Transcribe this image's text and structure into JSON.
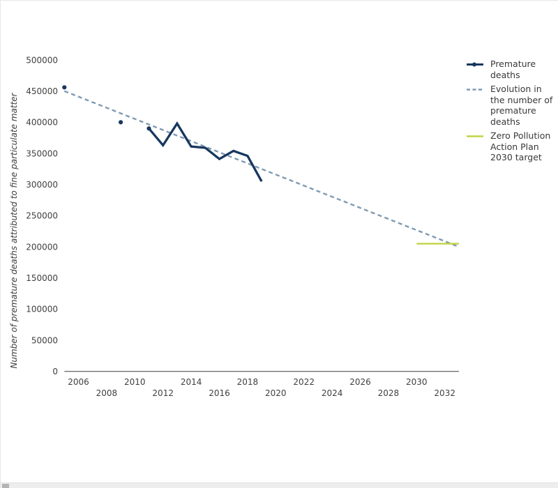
{
  "page": {
    "background": "#ffffff",
    "border_color": "#e7e7e7"
  },
  "legend": {
    "items": [
      {
        "id": "premature-deaths",
        "label": "Premature\ndeaths",
        "color": "#17375e",
        "style": "solid-marker"
      },
      {
        "id": "evolution-trend",
        "label": "Evolution in\nthe number of\npremature\ndeaths",
        "color": "#7f9ab3",
        "style": "dashed"
      },
      {
        "id": "zpap-target",
        "label": "Zero Pollution\nAction Plan\n2030 target",
        "color": "#c1d343",
        "style": "solid"
      }
    ]
  },
  "chart_data": {
    "type": "line",
    "title": "",
    "xlabel": "",
    "ylabel": "Number of premature deaths attributed to fine particulate matter",
    "xlim": [
      2005,
      2033.3
    ],
    "ylim": [
      0,
      500000
    ],
    "x_ticks": [
      2006,
      2008,
      2010,
      2012,
      2014,
      2016,
      2018,
      2020,
      2022,
      2024,
      2026,
      2028,
      2030,
      2032
    ],
    "y_ticks": [
      0,
      50000,
      100000,
      150000,
      200000,
      250000,
      300000,
      350000,
      400000,
      450000,
      500000
    ],
    "grid": false,
    "legend_position": "top-right",
    "series": [
      {
        "id": "premature-deaths",
        "name": "Premature deaths",
        "color": "#17375e",
        "style": "solid",
        "markers": {
          "x": [
            2005,
            2009,
            2011
          ],
          "values": [
            456000,
            400000,
            390000
          ]
        },
        "line": {
          "x": [
            2011,
            2012,
            2013,
            2014,
            2015,
            2016,
            2017,
            2018,
            2019
          ],
          "values": [
            390000,
            363000,
            398000,
            361000,
            359000,
            341000,
            354000,
            346000,
            305000
          ]
        }
      },
      {
        "id": "evolution-trend",
        "name": "Evolution in the number of premature deaths",
        "color": "#7f9ab3",
        "style": "dashed",
        "line": {
          "x": [
            2005,
            2033
          ],
          "values": [
            450000,
            200000
          ]
        }
      },
      {
        "id": "zpap-target",
        "name": "Zero Pollution Action Plan 2030 target",
        "color": "#c1d343",
        "style": "solid",
        "line": {
          "x": [
            2030,
            2033
          ],
          "values": [
            205000,
            205000
          ]
        }
      }
    ]
  }
}
